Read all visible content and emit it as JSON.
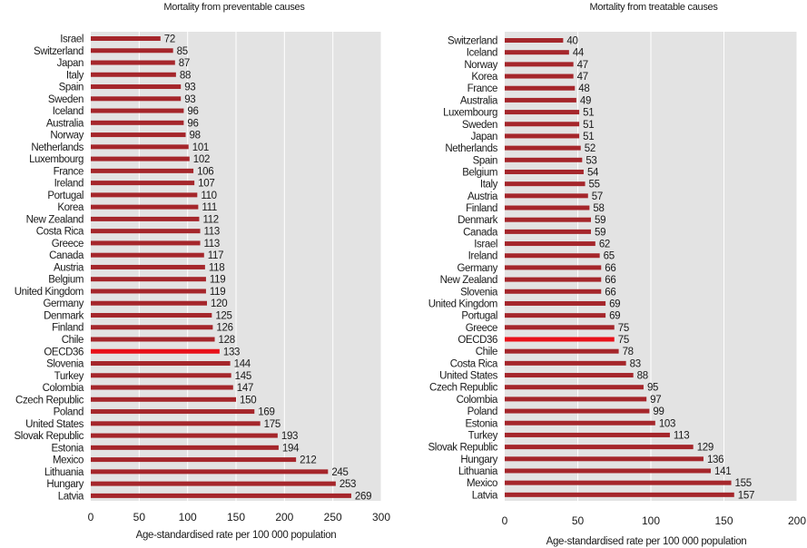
{
  "colors": {
    "bar": "#a5262b",
    "highlight": "#e8111a",
    "plot_bg": "#e3e3e3",
    "grid": "#ffffff"
  },
  "chart_data": [
    {
      "type": "bar",
      "orientation": "horizontal",
      "title": "Mortality from preventable causes",
      "xlabel": "Age-standardised rate per 100 000 population",
      "xlim": [
        0,
        300
      ],
      "xticks": [
        0,
        50,
        100,
        150,
        200,
        250,
        300
      ],
      "grid": true,
      "highlight": "OECD36",
      "categories": [
        "Israel",
        "Switzerland",
        "Japan",
        "Italy",
        "Spain",
        "Sweden",
        "Iceland",
        "Australia",
        "Norway",
        "Netherlands",
        "Luxembourg",
        "France",
        "Ireland",
        "Portugal",
        "Korea",
        "New Zealand",
        "Costa Rica",
        "Greece",
        "Canada",
        "Austria",
        "Belgium",
        "United Kingdom",
        "Germany",
        "Denmark",
        "Finland",
        "Chile",
        "OECD36",
        "Slovenia",
        "Turkey",
        "Colombia",
        "Czech Republic",
        "Poland",
        "United States",
        "Slovak Republic",
        "Estonia",
        "Mexico",
        "Lithuania",
        "Hungary",
        "Latvia"
      ],
      "values": [
        72,
        85,
        87,
        88,
        93,
        93,
        96,
        96,
        98,
        101,
        102,
        106,
        107,
        110,
        111,
        112,
        113,
        113,
        117,
        118,
        119,
        119,
        120,
        125,
        126,
        128,
        133,
        144,
        145,
        147,
        150,
        169,
        175,
        193,
        194,
        212,
        245,
        253,
        269
      ]
    },
    {
      "type": "bar",
      "orientation": "horizontal",
      "title": "Mortality from treatable causes",
      "xlabel": "Age-standardised rate per 100 000 population",
      "xlim": [
        0,
        200
      ],
      "xticks": [
        0,
        50,
        100,
        150,
        200
      ],
      "grid": true,
      "highlight": "OECD36",
      "categories": [
        "Switzerland",
        "Iceland",
        "Norway",
        "Korea",
        "France",
        "Australia",
        "Luxembourg",
        "Sweden",
        "Japan",
        "Netherlands",
        "Spain",
        "Belgium",
        "Italy",
        "Austria",
        "Finland",
        "Denmark",
        "Canada",
        "Israel",
        "Ireland",
        "Germany",
        "New Zealand",
        "Slovenia",
        "United Kingdom",
        "Portugal",
        "Greece",
        "OECD36",
        "Chile",
        "Costa Rica",
        "United States",
        "Czech Republic",
        "Colombia",
        "Poland",
        "Estonia",
        "Turkey",
        "Slovak Republic",
        "Hungary",
        "Lithuania",
        "Mexico",
        "Latvia"
      ],
      "values": [
        40,
        44,
        47,
        47,
        48,
        49,
        51,
        51,
        51,
        52,
        53,
        54,
        55,
        57,
        58,
        59,
        59,
        62,
        65,
        66,
        66,
        66,
        69,
        69,
        75,
        75,
        78,
        83,
        88,
        95,
        97,
        99,
        103,
        113,
        129,
        136,
        141,
        155,
        157
      ]
    }
  ]
}
